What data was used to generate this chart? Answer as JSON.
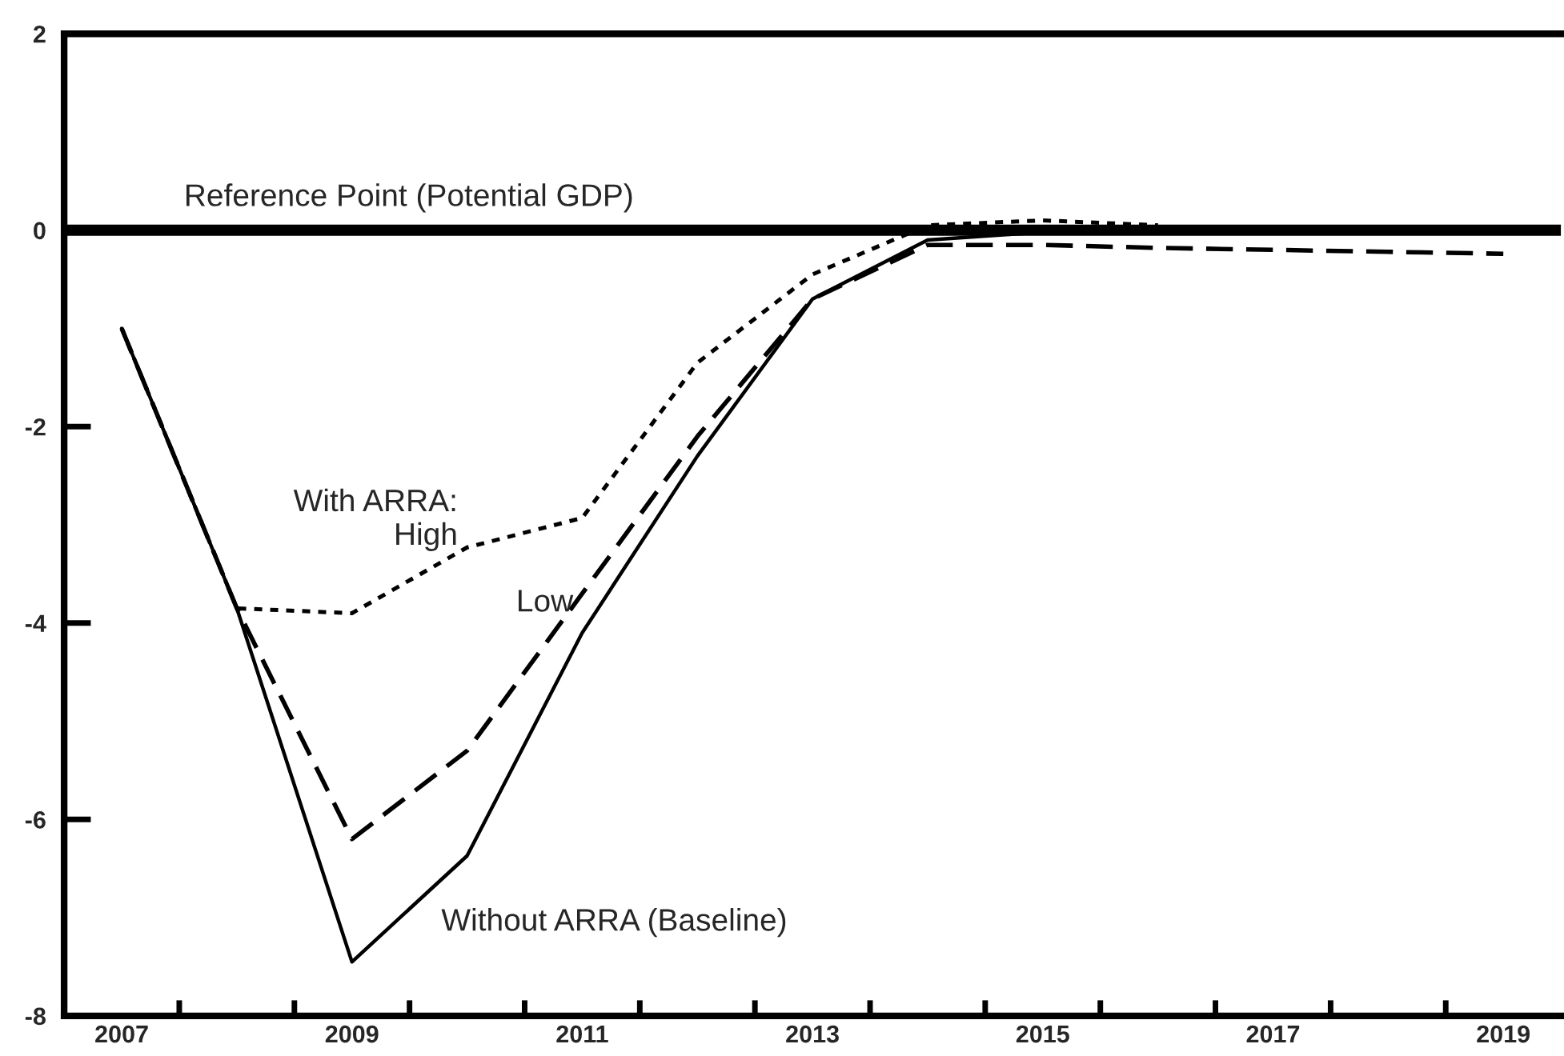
{
  "chart_data": {
    "type": "line",
    "x": [
      2007.5,
      2008.5,
      2009.5,
      2010.5,
      2011.5,
      2012.5,
      2013.5,
      2014.5,
      2015.5,
      2016.5,
      2017.5,
      2018.5,
      2019.5
    ],
    "series": [
      {
        "color": "#000000",
        "line_style": "solid",
        "values": [
          -1.0,
          -3.85,
          -7.45,
          -6.37,
          -4.1,
          -2.3,
          -0.7,
          -0.1,
          -0.02,
          null,
          null,
          null,
          null
        ]
      },
      {
        "color": "#000000",
        "line_style": "dashed",
        "values": [
          -1.0,
          -3.85,
          -6.2,
          -5.3,
          -3.7,
          -2.1,
          -0.7,
          -0.15,
          -0.15,
          -0.18,
          -0.2,
          -0.22,
          -0.24
        ]
      },
      {
        "color": "#000000",
        "line_style": "dotted",
        "values": [
          -1.0,
          -3.85,
          -3.9,
          -3.23,
          -2.93,
          -1.35,
          -0.45,
          0.05,
          0.1,
          0.05,
          null,
          null,
          null
        ]
      }
    ],
    "xlim": [
      2007,
      2020
    ],
    "xticks": [
      {
        "value": 2007.5,
        "label": "2007"
      },
      {
        "value": 2008,
        "label": null
      },
      {
        "value": 2009,
        "label": null
      },
      {
        "value": 2009.5,
        "label": "2009"
      },
      {
        "value": 2010,
        "label": null
      },
      {
        "value": 2011,
        "label": null
      },
      {
        "value": 2011.5,
        "label": "2011"
      },
      {
        "value": 2012,
        "label": null
      },
      {
        "value": 2013,
        "label": null
      },
      {
        "value": 2013.5,
        "label": "2013"
      },
      {
        "value": 2014,
        "label": null
      },
      {
        "value": 2015,
        "label": null
      },
      {
        "value": 2015.5,
        "label": "2015"
      },
      {
        "value": 2016,
        "label": null
      },
      {
        "value": 2017,
        "label": null
      },
      {
        "value": 2017.5,
        "label": "2017"
      },
      {
        "value": 2018,
        "label": null
      },
      {
        "value": 2019,
        "label": null
      },
      {
        "value": 2019.5,
        "label": "2019"
      }
    ],
    "ylim": [
      -8,
      2
    ],
    "yticks": [
      -8,
      -6,
      -4,
      -2,
      0,
      2
    ],
    "grid": false,
    "legend": false,
    "ref_lines": [
      {
        "axis": "y",
        "value": 0,
        "label": "Reference Point (Potential GDP)",
        "color": "#000000",
        "line_style": "solid"
      }
    ],
    "annotations": [
      "With ARRA:\nHigh",
      "Low",
      "Without ARRA (Baseline)"
    ]
  }
}
